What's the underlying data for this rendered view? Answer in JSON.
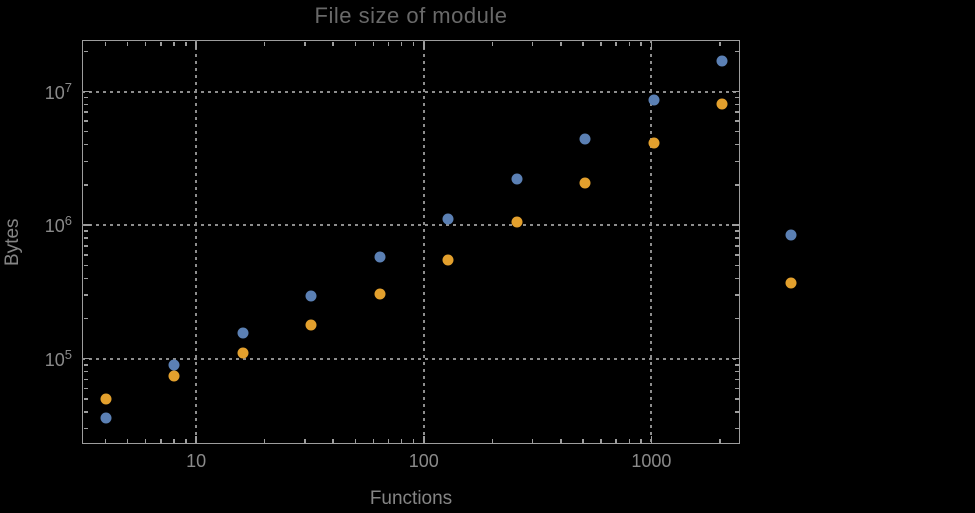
{
  "chart_data": {
    "type": "scatter",
    "title": "File size of module",
    "xlabel": "Functions",
    "ylabel": "Bytes",
    "x_scale": "log",
    "y_scale": "log",
    "xlim": [
      3.15,
      2450
    ],
    "ylim": [
      23000,
      24300000
    ],
    "grid": "dotted, major decades only",
    "legend": "none",
    "x": [
      4,
      8,
      16,
      32,
      64,
      128,
      256,
      512,
      1024,
      2048,
      4096
    ],
    "series": [
      {
        "name": "blue",
        "color": "#5b80b4",
        "values": [
          36000,
          89000,
          157000,
          295000,
          575000,
          1110000,
          2200000,
          4400000,
          8700000,
          17000000,
          850000
        ]
      },
      {
        "name": "orange",
        "color": "#e3a02d",
        "values": [
          50000,
          74000,
          110000,
          178000,
          305000,
          550000,
          1050000,
          2080000,
          4100000,
          8100000,
          370000
        ]
      }
    ],
    "x_ticks": [
      {
        "value": 10,
        "label": "10"
      },
      {
        "value": 100,
        "label": "100"
      },
      {
        "value": 1000,
        "label": "1000"
      }
    ],
    "y_ticks": [
      {
        "value": 100000,
        "base": "10",
        "exp": "5"
      },
      {
        "value": 1000000,
        "base": "10",
        "exp": "6"
      },
      {
        "value": 10000000,
        "base": "10",
        "exp": "7"
      }
    ],
    "style": {
      "background_color": "#000000",
      "frame_color": "#9d9d9d",
      "grid_color": "#8d8d8d",
      "tick_label_color": "#8a8a8a",
      "axis_label_color": "#858585",
      "title_color": "#696969"
    }
  }
}
